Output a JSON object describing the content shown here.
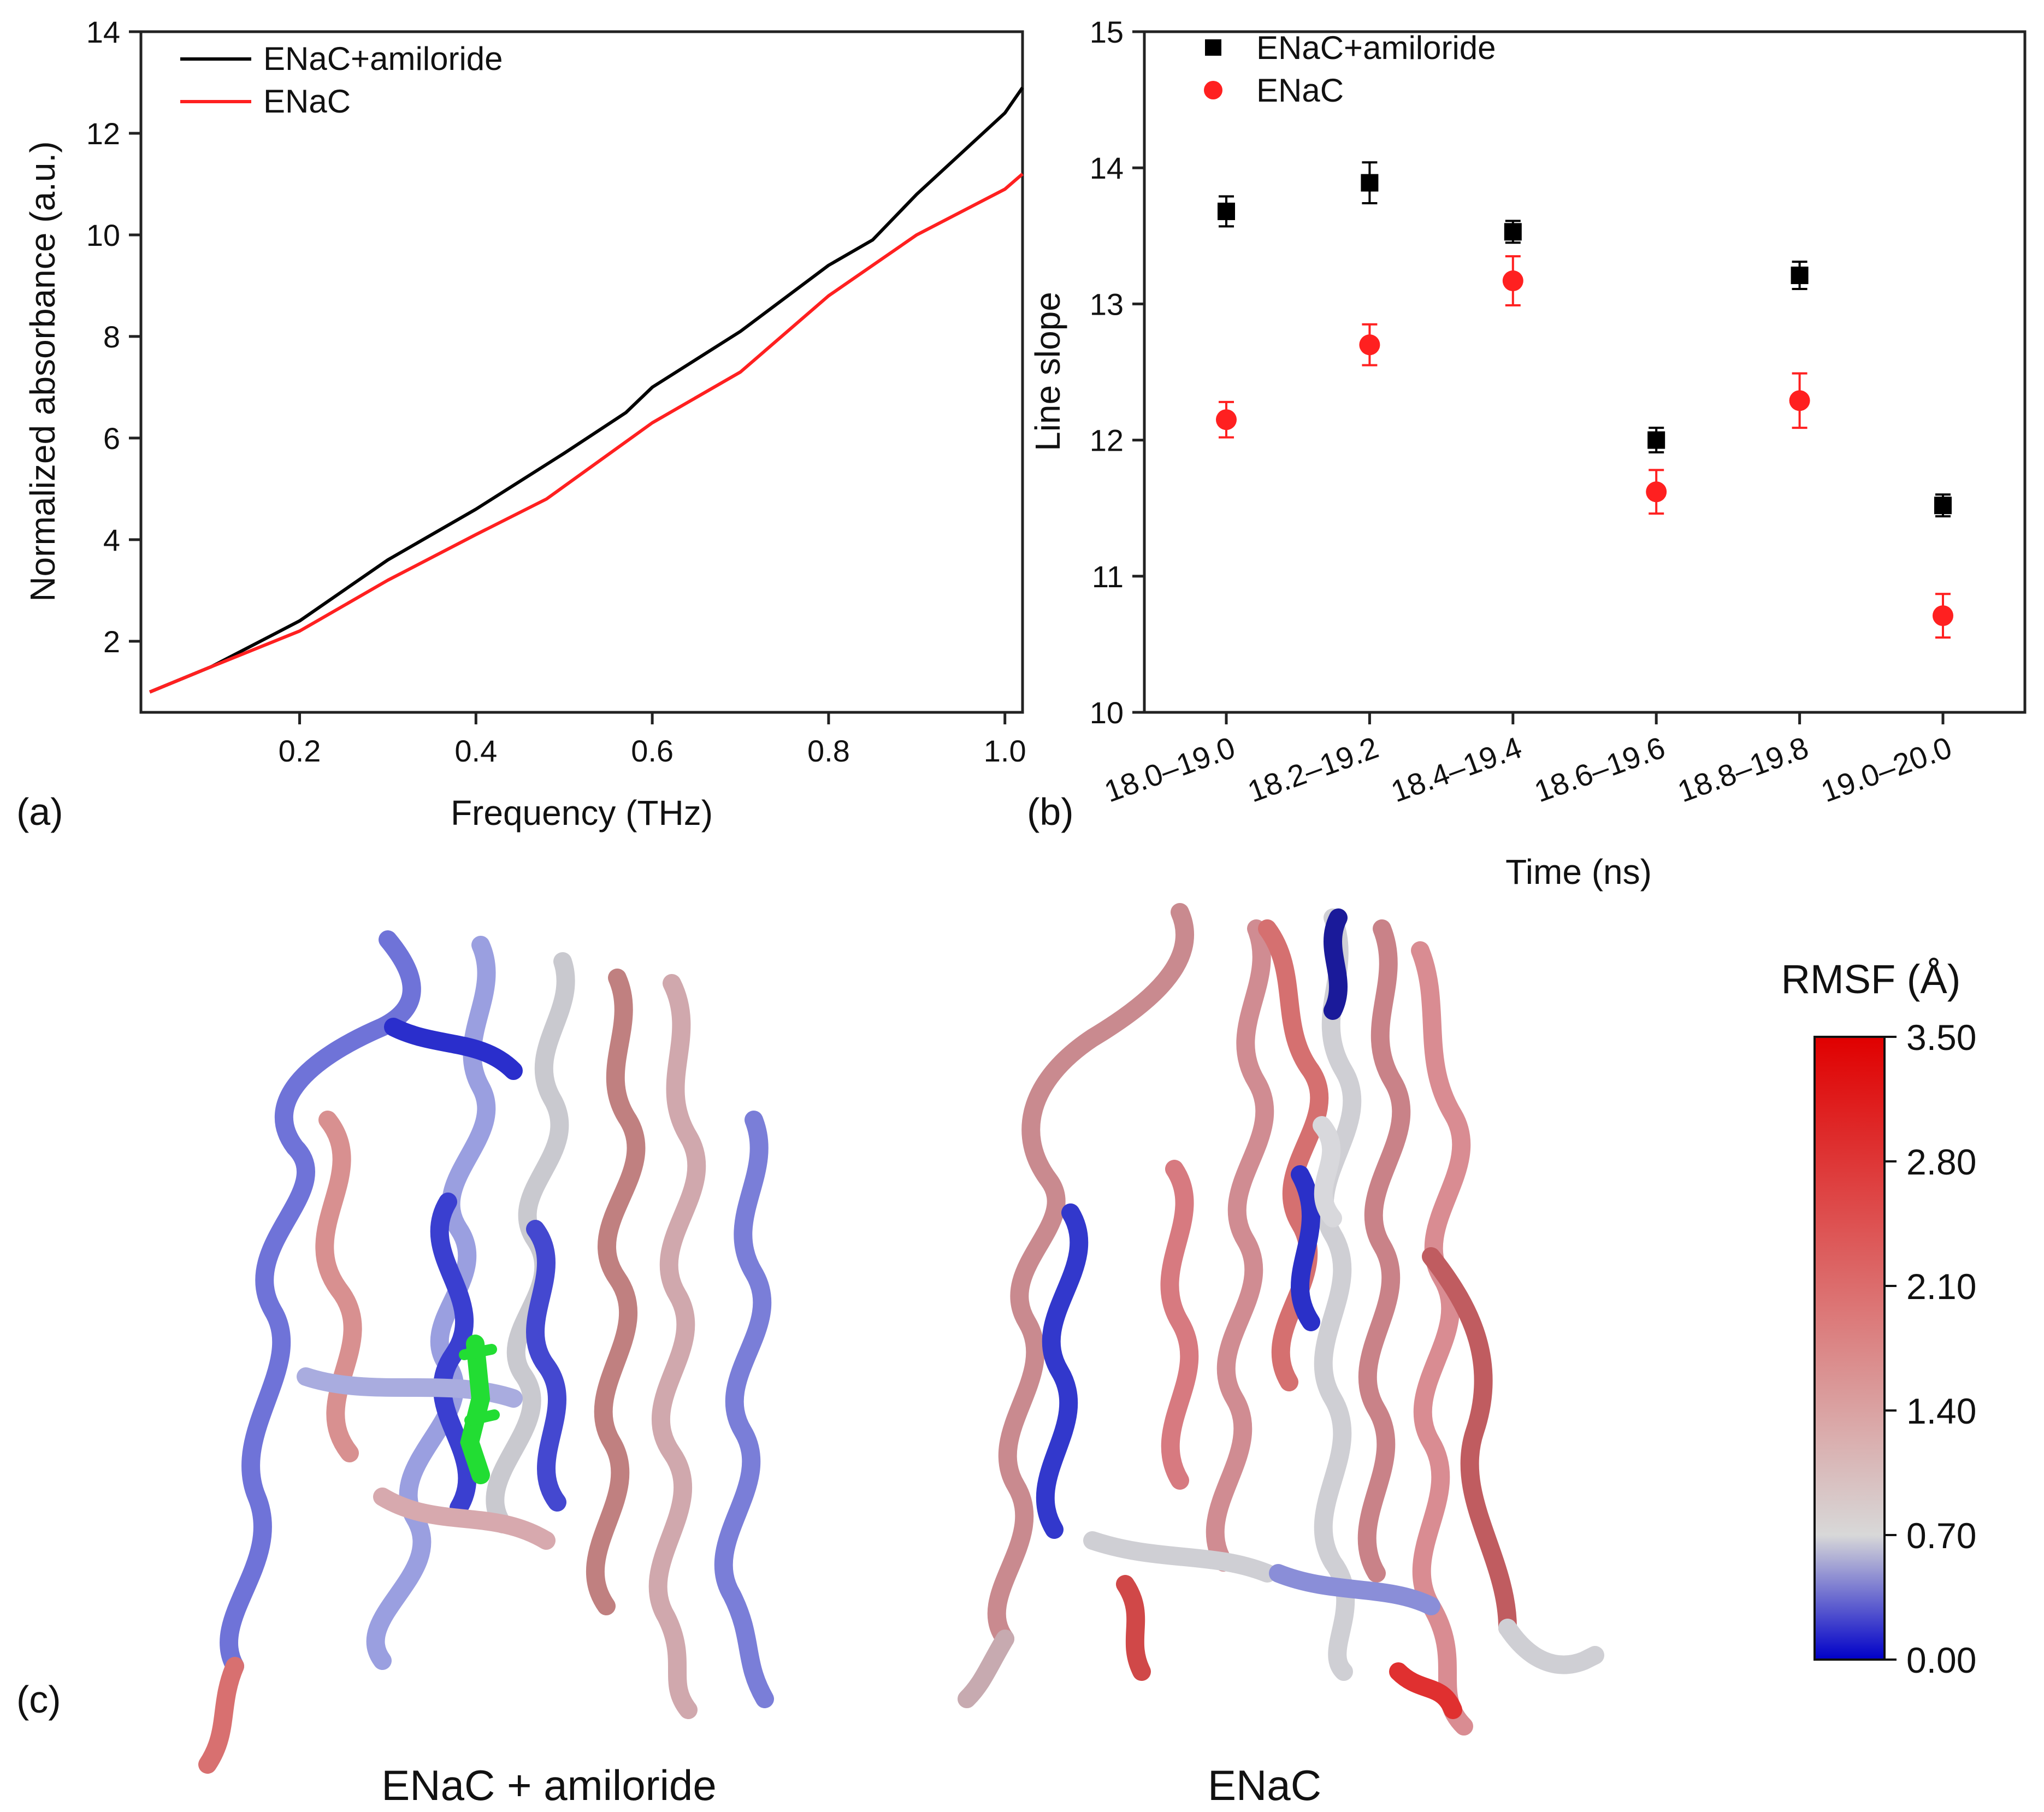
{
  "panel_labels": {
    "a": "(a)",
    "b": "(b)",
    "c": "(c)"
  },
  "colors": {
    "amiloride": "#000000",
    "enac": "#ff2020",
    "cb_low": "#0000c8",
    "cb_mid": "#d8d8d8",
    "cb_high": "#e00000"
  },
  "chart_data": [
    {
      "type": "line",
      "xlabel": "Frequency (THz)",
      "ylabel": "Normalized absorbance (a.u.)",
      "xlim": [
        0.02,
        1.02
      ],
      "ylim": [
        0.6,
        14
      ],
      "xticks": [
        "0.2",
        "0.4",
        "0.6",
        "0.8",
        "1.0"
      ],
      "xtick_values": [
        0.2,
        0.4,
        0.6,
        0.8,
        1.0
      ],
      "yticks": [
        "2",
        "4",
        "6",
        "8",
        "10",
        "12",
        "14"
      ],
      "ytick_values": [
        2,
        4,
        6,
        8,
        10,
        12,
        14
      ],
      "legend_position": "top-left",
      "series": [
        {
          "name": "ENaC+amiloride",
          "color": "#000000",
          "x": [
            0.03,
            0.1,
            0.2,
            0.3,
            0.4,
            0.5,
            0.57,
            0.6,
            0.7,
            0.8,
            0.85,
            0.9,
            0.95,
            1.0,
            1.02
          ],
          "y": [
            1.0,
            1.5,
            2.4,
            3.6,
            4.6,
            5.7,
            6.5,
            7.0,
            8.1,
            9.4,
            9.9,
            10.8,
            11.6,
            12.4,
            12.9
          ]
        },
        {
          "name": "ENaC",
          "color": "#ff2020",
          "x": [
            0.03,
            0.1,
            0.2,
            0.3,
            0.4,
            0.48,
            0.6,
            0.7,
            0.72,
            0.8,
            0.9,
            1.0,
            1.02
          ],
          "y": [
            1.0,
            1.5,
            2.2,
            3.2,
            4.1,
            4.8,
            6.3,
            7.3,
            7.6,
            8.8,
            10.0,
            10.9,
            11.2
          ]
        }
      ]
    },
    {
      "type": "scatter",
      "xlabel": "Time (ns)",
      "ylabel": "Line slope",
      "categories": [
        "18.0–19.0",
        "18.2–19.2",
        "18.4–19.4",
        "18.6–19.6",
        "18.8–19.8",
        "19.0–20.0"
      ],
      "ylim": [
        10,
        15
      ],
      "yticks": [
        "10",
        "11",
        "12",
        "13",
        "14",
        "15"
      ],
      "ytick_values": [
        10,
        11,
        12,
        13,
        14,
        15
      ],
      "legend_position": "top-left",
      "series": [
        {
          "name": "ENaC+amiloride",
          "marker": "square",
          "color": "#000000",
          "values": [
            13.68,
            13.89,
            13.53,
            12.0,
            13.21,
            11.52
          ],
          "errors": [
            0.11,
            0.15,
            0.08,
            0.09,
            0.1,
            0.08
          ]
        },
        {
          "name": "ENaC",
          "marker": "circle",
          "color": "#ff2020",
          "values": [
            12.15,
            12.7,
            13.17,
            11.62,
            12.29,
            10.71
          ],
          "errors": [
            0.13,
            0.15,
            0.18,
            0.16,
            0.2,
            0.16
          ]
        }
      ]
    }
  ],
  "panel_c": {
    "left_caption": "ENaC + amiloride",
    "right_caption": "ENaC",
    "colorbar": {
      "title": "RMSF (Å)",
      "ticks": [
        "0.00",
        "0.70",
        "1.40",
        "2.10",
        "2.80",
        "3.50"
      ],
      "tick_values": [
        0,
        0.7,
        1.4,
        2.1,
        2.8,
        3.5
      ],
      "range": [
        0,
        3.5
      ]
    }
  }
}
